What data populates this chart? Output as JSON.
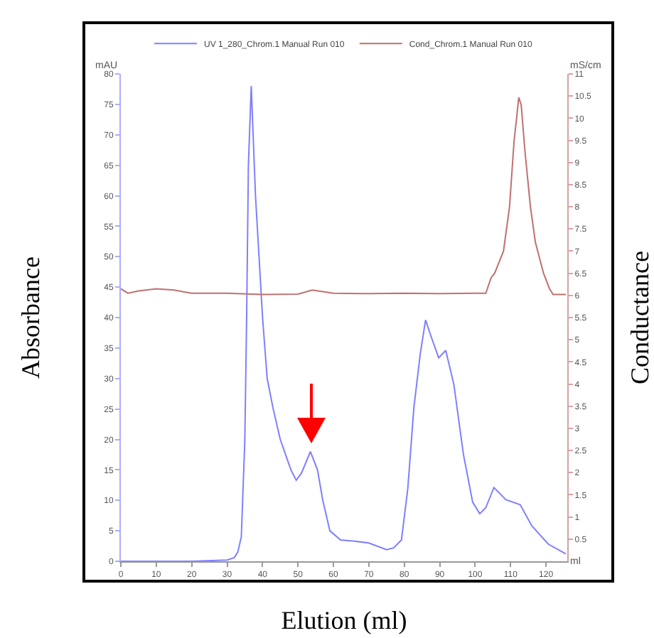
{
  "chart_data": {
    "type": "line",
    "xlabel": "Elution (ml)",
    "ylabel": "Absorbance",
    "y2label": "Conductance",
    "annotations": [
      "mAU",
      "mS/cm",
      "ml"
    ],
    "x": [
      0,
      10,
      20,
      30,
      32,
      33,
      34,
      35,
      35.5,
      36,
      36.8,
      38,
      40,
      41.3,
      43,
      45,
      48,
      49.5,
      51,
      53.5,
      55.5,
      57,
      59,
      62,
      66,
      70,
      75,
      77,
      79.2,
      81,
      82.7,
      84.5,
      86,
      87.5,
      89.7,
      91.7,
      94,
      96.7,
      99.3,
      101.3,
      103,
      105.3,
      108.7,
      112.7,
      116,
      120.7,
      125.6
    ],
    "xlim": [
      0,
      126
    ],
    "xticks": [
      0,
      10,
      20,
      30,
      40,
      50,
      60,
      70,
      80,
      90,
      100,
      110,
      120
    ],
    "ylim": [
      0,
      80
    ],
    "yticks": [
      0,
      5,
      10,
      15,
      20,
      25,
      30,
      35,
      40,
      45,
      50,
      55,
      60,
      65,
      70,
      75,
      80
    ],
    "y2lim": [
      0,
      11
    ],
    "y2ticks": [
      0.5,
      1,
      1.5,
      2,
      2.5,
      3,
      3.5,
      4,
      4.5,
      5,
      5.5,
      6,
      6.5,
      7,
      7.5,
      8,
      8.5,
      9,
      9.5,
      10,
      10.5,
      11
    ],
    "grid": false,
    "legend": "top",
    "marker": "none",
    "line_style": "solid",
    "series": [
      {
        "name": "UV 1_280_Chrom.1 Manual Run 010",
        "color": "#7f7fff",
        "values": [
          0,
          0,
          0,
          0.2,
          0.6,
          1.5,
          4,
          20,
          40,
          65,
          78,
          60,
          40,
          30,
          25,
          20,
          15,
          13.3,
          14.5,
          18,
          15,
          10,
          5,
          3.5,
          3.3,
          3,
          1.9,
          2.2,
          3.5,
          12,
          25.2,
          34,
          39.6,
          37,
          33.4,
          34.6,
          29,
          17.5,
          9.7,
          7.8,
          8.8,
          12.1,
          10.1,
          9.3,
          5.8,
          2.8,
          1.2
        ]
      },
      {
        "name": "Cond_Chrom.1 Manual Run 010",
        "color": "#c07070",
        "axis": "y2",
        "x": [
          0,
          2,
          5,
          10,
          15,
          20,
          30,
          40,
          50,
          54,
          60,
          70,
          80,
          90,
          100,
          103,
          104.5,
          105.5,
          107,
          108,
          109.7,
          111,
          111.7,
          112.3,
          113,
          114,
          115.6,
          117,
          119.3,
          121,
          122,
          125.6
        ],
        "values": [
          6.15,
          6.05,
          6.1,
          6.15,
          6.12,
          6.05,
          6.05,
          6.02,
          6.03,
          6.12,
          6.05,
          6.04,
          6.05,
          6.04,
          6.05,
          6.05,
          6.4,
          6.5,
          6.8,
          7,
          8,
          9.5,
          10,
          10.47,
          10.3,
          9.3,
          8,
          7.2,
          6.5,
          6.15,
          6.02,
          6.02
        ]
      }
    ]
  }
}
